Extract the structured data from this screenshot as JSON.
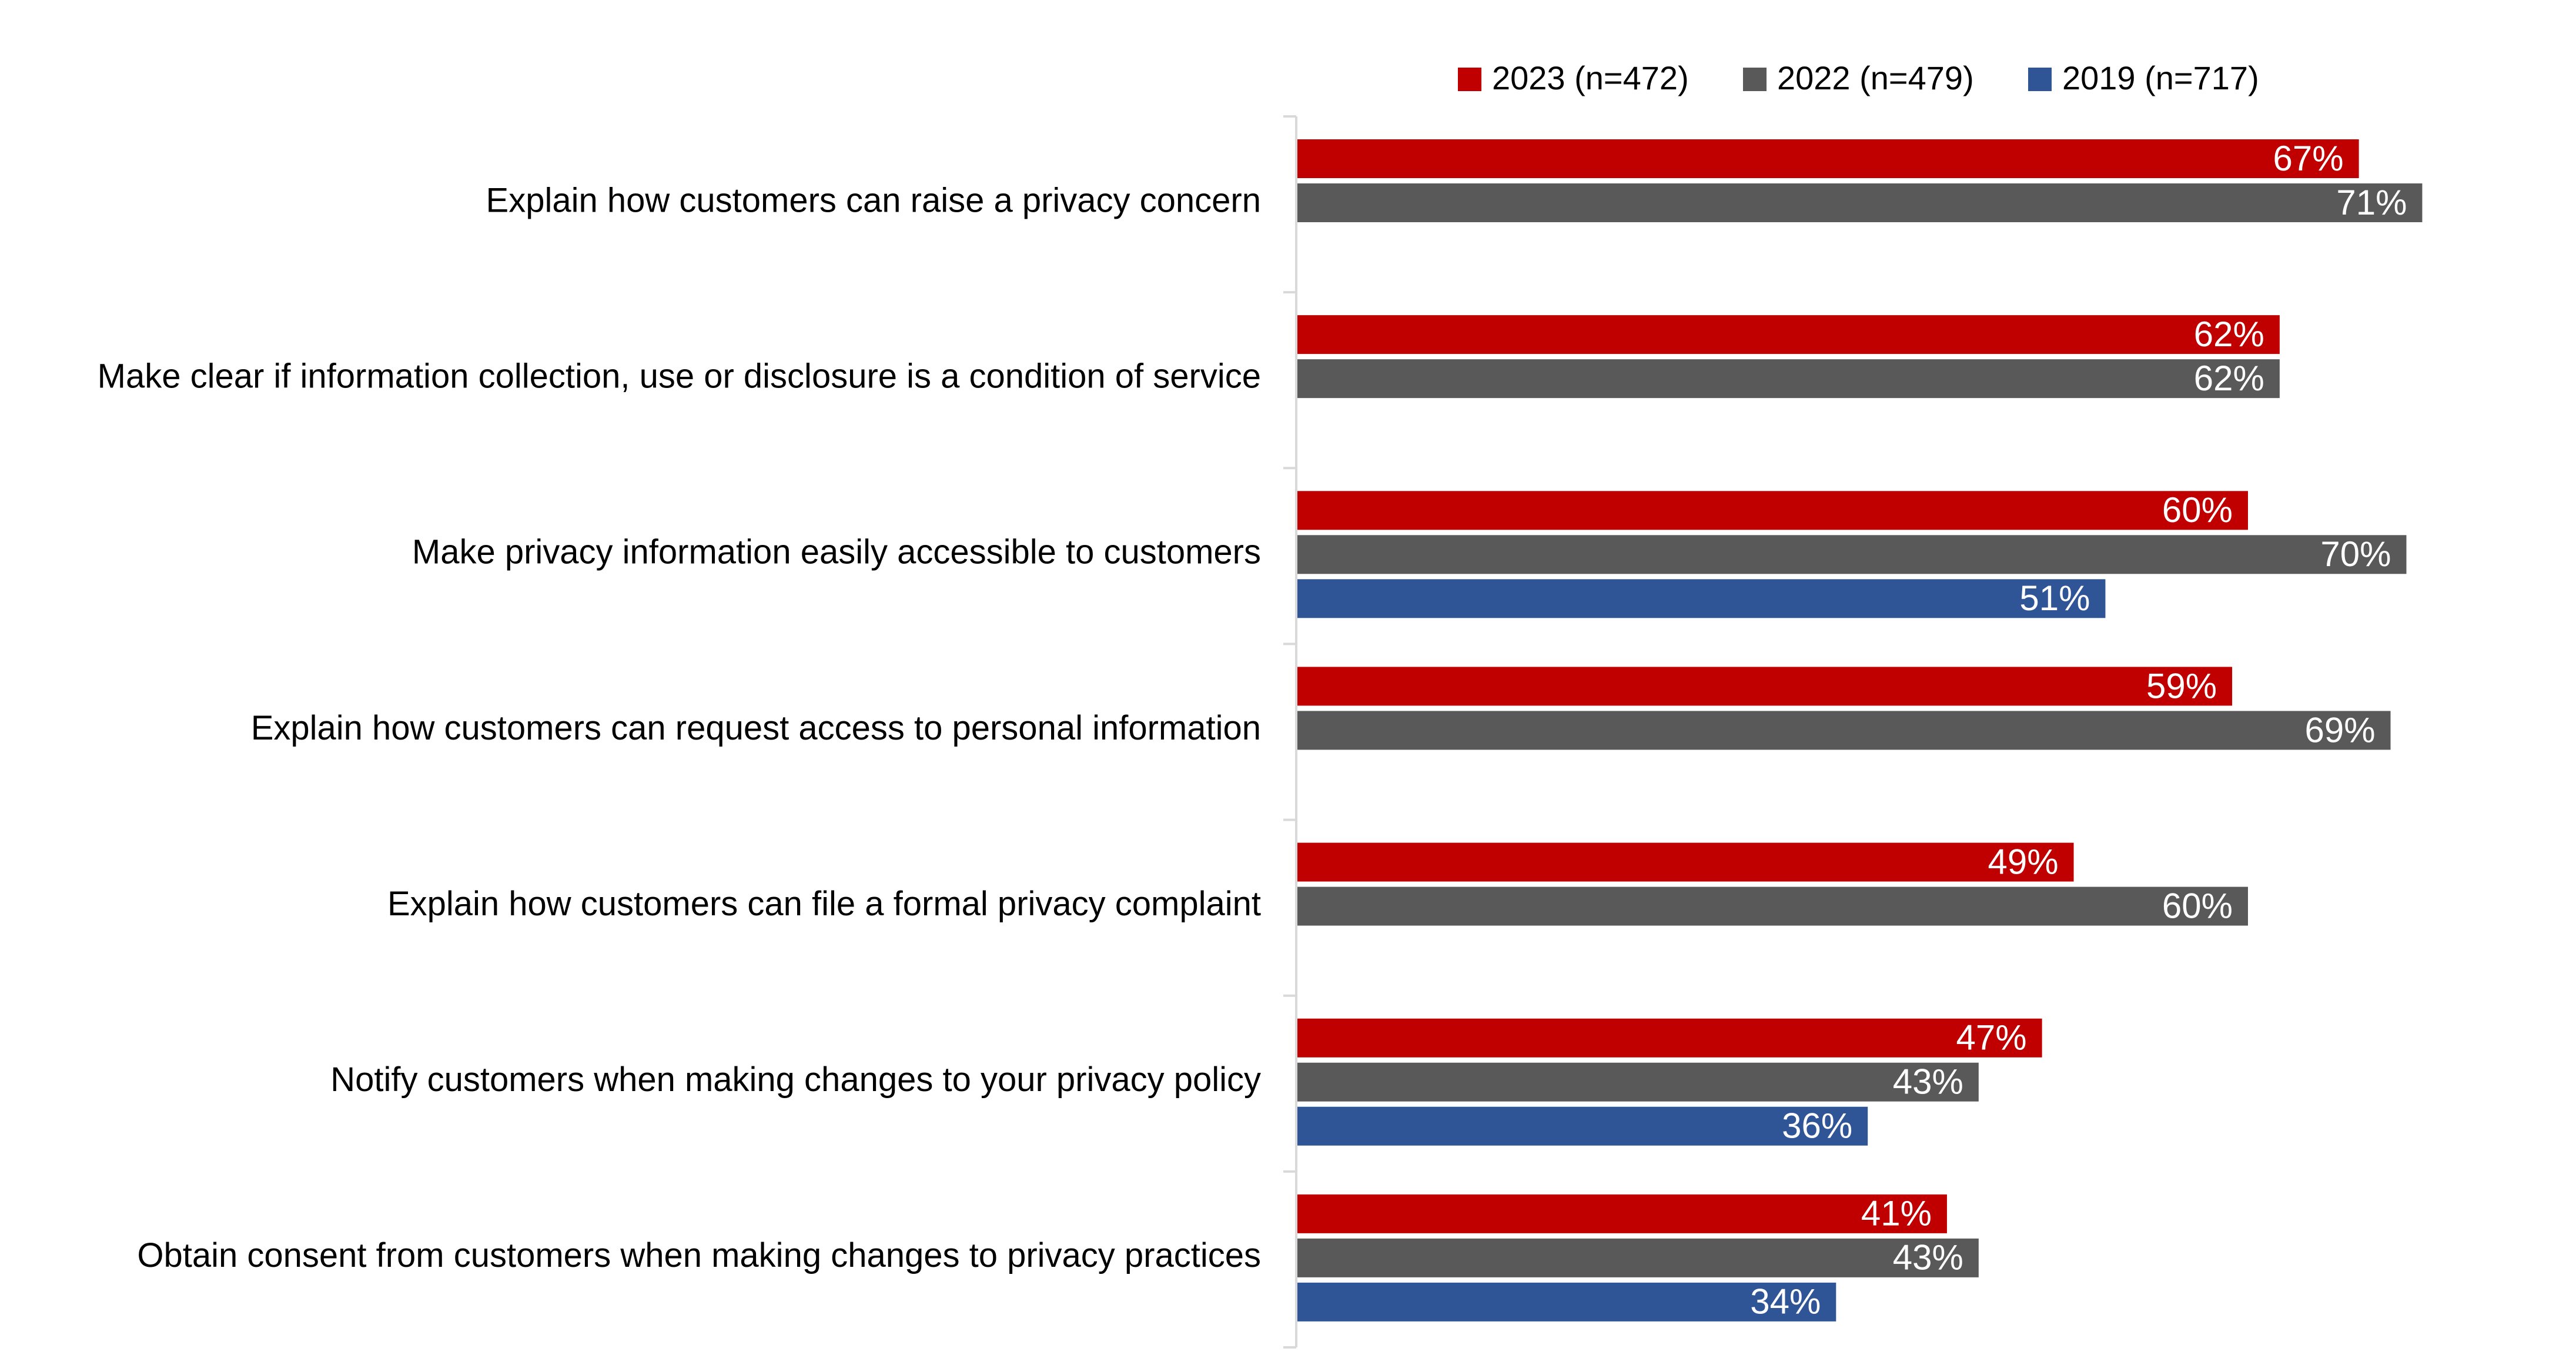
{
  "chart_data": {
    "type": "bar",
    "orientation": "horizontal",
    "categories": [
      "Explain how customers can raise a privacy concern",
      "Make clear if information collection, use or disclosure is a condition of service",
      "Make privacy information easily accessible to customers",
      "Explain how customers can request access to personal information",
      "Explain how customers can file a formal privacy complaint",
      "Notify customers when making changes to your privacy policy",
      "Obtain consent from customers when making changes to privacy practices"
    ],
    "series": [
      {
        "name": "2023 (n=472)",
        "color": "#C00000",
        "values": [
          67,
          62,
          60,
          59,
          49,
          47,
          41
        ]
      },
      {
        "name": "2022 (n=479)",
        "color": "#595959",
        "values": [
          71,
          62,
          70,
          69,
          60,
          43,
          43
        ]
      },
      {
        "name": "2019 (n=717)",
        "color": "#2F5597",
        "values": [
          null,
          null,
          51,
          null,
          null,
          36,
          34
        ]
      }
    ],
    "value_suffix": "%",
    "xlim": [
      0,
      100
    ],
    "grid": false,
    "legend_position": "top-right"
  }
}
